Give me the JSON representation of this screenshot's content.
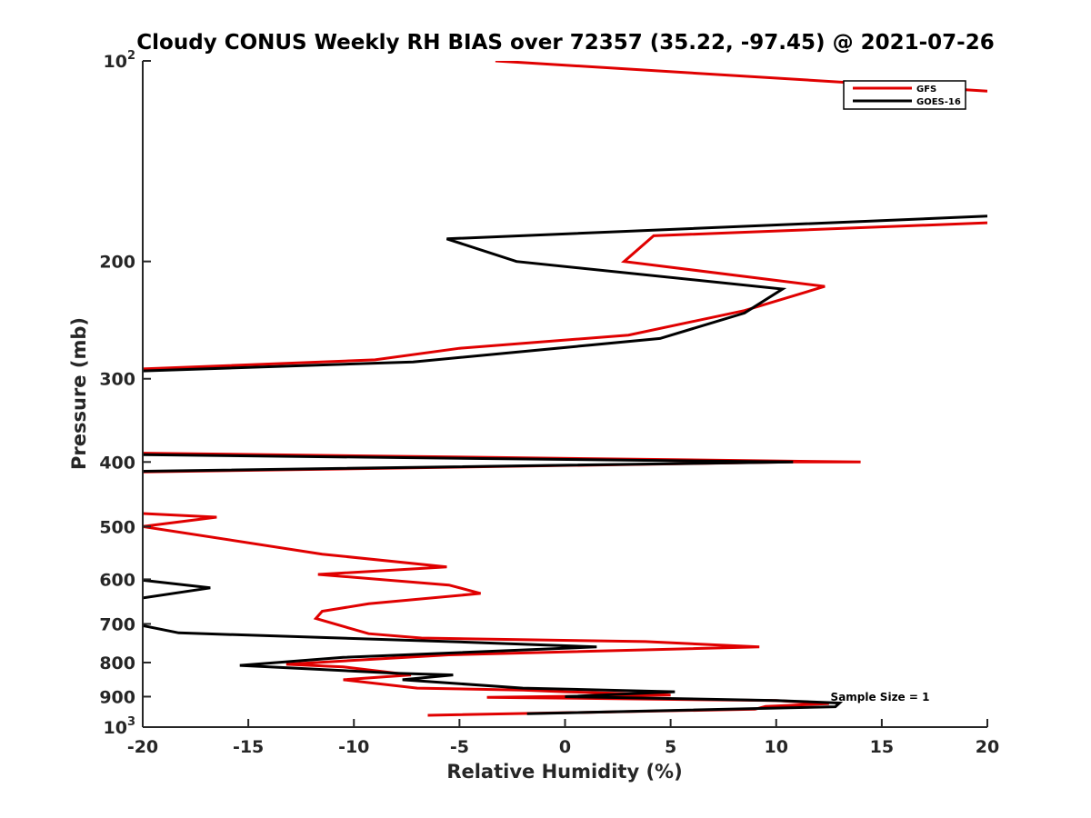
{
  "chart_data": {
    "type": "line",
    "title": "Cloudy CONUS Weekly RH BIAS over 72357 (35.22, -97.45) @ 2021-07-26",
    "xlabel": "Relative Humidity (%)",
    "ylabel": "Pressure (mb)",
    "xlim": [
      -20,
      20
    ],
    "ylim": [
      100,
      1000
    ],
    "y_scale": "log",
    "y_reversed": true,
    "x_ticks": [
      "-20",
      "-15",
      "-10",
      "-5",
      "0",
      "5",
      "10",
      "15",
      "20"
    ],
    "y_ticks": [
      {
        "value": 100,
        "label": "10",
        "sup": "2"
      },
      {
        "value": 200,
        "label": "200"
      },
      {
        "value": 300,
        "label": "300"
      },
      {
        "value": 400,
        "label": "400"
      },
      {
        "value": 500,
        "label": "500"
      },
      {
        "value": 600,
        "label": "600"
      },
      {
        "value": 700,
        "label": "700"
      },
      {
        "value": 800,
        "label": "800"
      },
      {
        "value": 900,
        "label": "900"
      },
      {
        "value": 1000,
        "label": "10",
        "sup": "3"
      }
    ],
    "grid": false,
    "legend_position": "top-right",
    "annotation": "Sample Size = 1",
    "series": [
      {
        "name": "GFS",
        "color": "#e00000",
        "segments": [
          [
            [
              -3.3,
              100
            ],
            [
              20,
              111
            ]
          ],
          [
            [
              20,
              175
            ],
            [
              4.2,
              183
            ],
            [
              2.8,
              200
            ],
            [
              12.3,
              218
            ],
            [
              8.5,
              237
            ],
            [
              3,
              258
            ],
            [
              -5,
              270
            ],
            [
              -9,
              281
            ],
            [
              -20,
              290
            ]
          ],
          [
            [
              -20,
              414
            ],
            [
              10.8,
              400
            ],
            [
              14,
              400
            ],
            [
              -20,
              388
            ]
          ],
          [
            [
              -20,
              478
            ],
            [
              -16.5,
              484
            ],
            [
              -20,
              500
            ],
            [
              -11.5,
              550
            ],
            [
              -5.6,
              575
            ],
            [
              -11.7,
              590
            ],
            [
              -5.5,
              612
            ],
            [
              -4,
              630
            ],
            [
              -9.3,
              653
            ],
            [
              -11.5,
              670
            ],
            [
              -11.8,
              687
            ],
            [
              -9.3,
              724
            ],
            [
              -6.8,
              735
            ],
            [
              3.8,
              744
            ],
            [
              9.2,
              758
            ],
            [
              -5.5,
              779
            ],
            [
              -13.2,
              805
            ],
            [
              -10.5,
              812
            ],
            [
              -7.3,
              835
            ],
            [
              -10.5,
              849
            ],
            [
              -7,
              874
            ],
            [
              -2,
              880
            ],
            [
              0,
              885
            ],
            [
              5,
              895
            ],
            [
              -3.7,
              902
            ],
            [
              10,
              912
            ],
            [
              12.5,
              922
            ],
            [
              9.5,
              931
            ],
            [
              9,
              940
            ],
            [
              -6.5,
              960
            ]
          ]
        ]
      },
      {
        "name": "GOES-16",
        "color": "#000000",
        "segments": [
          [
            [
              20,
              171
            ],
            [
              -5.6,
              185
            ],
            [
              -2.3,
              200
            ],
            [
              10.3,
              220
            ],
            [
              8.5,
              239
            ],
            [
              4.5,
              261
            ],
            [
              -7.2,
              283
            ],
            [
              -20,
              292
            ]
          ],
          [
            [
              -20,
              390
            ],
            [
              10.8,
              400
            ],
            [
              -20,
              413
            ]
          ],
          [
            [
              -20,
              602
            ],
            [
              -16.8,
              618
            ],
            [
              -20,
              640
            ]
          ],
          [
            [
              -20,
              704
            ],
            [
              -18.3,
              722
            ],
            [
              -5,
              745
            ],
            [
              1.5,
              758
            ],
            [
              -10.5,
              786
            ],
            [
              -15.4,
              808
            ],
            [
              -8,
              830
            ],
            [
              -5.3,
              835
            ],
            [
              -7.7,
              849
            ],
            [
              -2,
              874
            ],
            [
              5.2,
              885
            ],
            [
              0,
              900
            ],
            [
              10,
              912
            ],
            [
              13,
              920
            ],
            [
              12.8,
              932
            ],
            [
              -1.8,
              955
            ]
          ]
        ]
      }
    ]
  }
}
